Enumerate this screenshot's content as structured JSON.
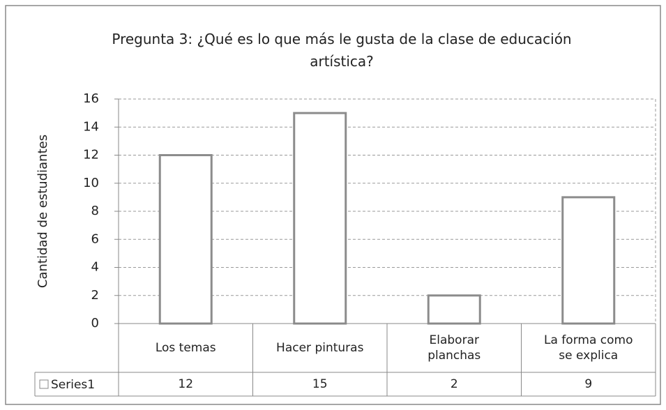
{
  "chart_data": {
    "type": "bar",
    "title": "Pregunta 3: ¿Qué es lo que más le gusta de la clase de educación artística?",
    "y_label": "Cantidad de estudiantes",
    "categories": [
      "Los temas",
      "Hacer pinturas",
      "Elaborar planchas",
      "La forma como se explica"
    ],
    "series": [
      {
        "name": "Series1",
        "color": "#ffffff",
        "values": [
          12,
          15,
          2,
          9
        ]
      }
    ],
    "ylim": [
      0,
      16
    ],
    "yticks": [
      0,
      2,
      4,
      6,
      8,
      10,
      12,
      14,
      16
    ],
    "grid": true,
    "data_table": true
  }
}
